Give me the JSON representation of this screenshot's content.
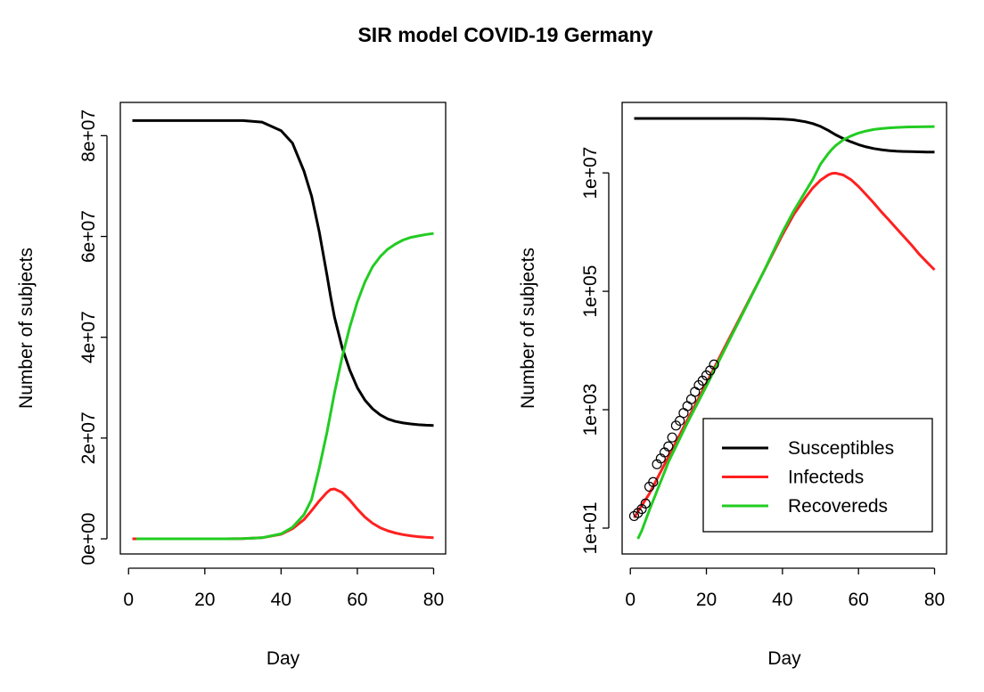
{
  "chart_data": [
    {
      "type": "line",
      "title": "SIR model COVID-19 Germany",
      "xlabel": "Day",
      "ylabel": "Number of subjects",
      "yscale": "linear",
      "xlim": [
        -2.16,
        83.16
      ],
      "ylim": [
        -3000000,
        86600000
      ],
      "xticks": [
        0,
        20,
        40,
        60,
        80
      ],
      "xtick_labels": [
        "0",
        "20",
        "40",
        "60",
        "80"
      ],
      "yticks": [
        0,
        20000000,
        40000000,
        60000000,
        80000000
      ],
      "ytick_labels": [
        "0e+00",
        "2e+07",
        "4e+07",
        "6e+07",
        "8e+07"
      ],
      "grid": false,
      "x": [
        1,
        2,
        3,
        5,
        10,
        15,
        20,
        25,
        30,
        35,
        40,
        43,
        46,
        48,
        50,
        52,
        53,
        54,
        56,
        58,
        60,
        62,
        64,
        66,
        68,
        70,
        72,
        74,
        76,
        78,
        80
      ],
      "series": [
        {
          "name": "Susceptibles",
          "color": "#000000",
          "values": [
            83000000,
            83000000,
            83000000,
            83000000,
            83000000,
            83000000,
            83000000,
            83000000,
            83000000,
            82700000,
            81000000,
            78500000,
            73000000,
            68000000,
            61000000,
            52500000,
            48000000,
            44000000,
            38000000,
            33500000,
            30000000,
            27500000,
            25800000,
            24600000,
            23800000,
            23300000,
            23000000,
            22800000,
            22650000,
            22550000,
            22500000
          ]
        },
        {
          "name": "Infecteds",
          "color": "#ff2020",
          "values": [
            15,
            19,
            24,
            38,
            160,
            670,
            2800,
            12000,
            50000,
            210000,
            900000,
            2000000,
            3800000,
            5600000,
            7500000,
            9200000,
            9800000,
            9900000,
            9200000,
            7700000,
            5900000,
            4300000,
            3100000,
            2200000,
            1600000,
            1150000,
            830000,
            600000,
            420000,
            310000,
            230000
          ]
        },
        {
          "name": "Recovereds",
          "color": "#22cc22",
          "values": [
            null,
            6.6,
            9,
            20,
            130,
            600,
            2500,
            11000,
            48000,
            210000,
            1000000,
            2300000,
            4800000,
            7800000,
            14000000,
            21000000,
            25000000,
            29000000,
            36000000,
            42000000,
            47000000,
            51000000,
            54000000,
            56000000,
            57500000,
            58500000,
            59300000,
            59800000,
            60100000,
            60400000,
            60600000
          ]
        }
      ]
    },
    {
      "type": "line",
      "xlabel": "Day",
      "ylabel": "Number of subjects",
      "yscale": "log",
      "xlim": [
        -2.16,
        83.16
      ],
      "ylim": [
        3.66,
        155000000
      ],
      "xticks": [
        0,
        20,
        40,
        60,
        80
      ],
      "xtick_labels": [
        "0",
        "20",
        "40",
        "60",
        "80"
      ],
      "yticks": [
        10,
        1000,
        100000,
        10000000
      ],
      "ytick_labels": [
        "1e+01",
        "1e+03",
        "1e+05",
        "1e+07"
      ],
      "grid": false,
      "legend": {
        "placement": "bottom-right",
        "entries": [
          "Susceptibles",
          "Infecteds",
          "Recovereds"
        ]
      },
      "observed_points": {
        "x": [
          1,
          2,
          3,
          4,
          5,
          6,
          7,
          8,
          9,
          10,
          11,
          12,
          13,
          14,
          15,
          16,
          17,
          18,
          19,
          20,
          21,
          22
        ],
        "y": [
          16,
          18,
          21,
          26,
          50,
          60,
          120,
          150,
          190,
          240,
          340,
          540,
          650,
          880,
          1150,
          1500,
          2000,
          2600,
          3100,
          3800,
          4600,
          5800
        ],
        "marker": "open-circle"
      }
    }
  ]
}
